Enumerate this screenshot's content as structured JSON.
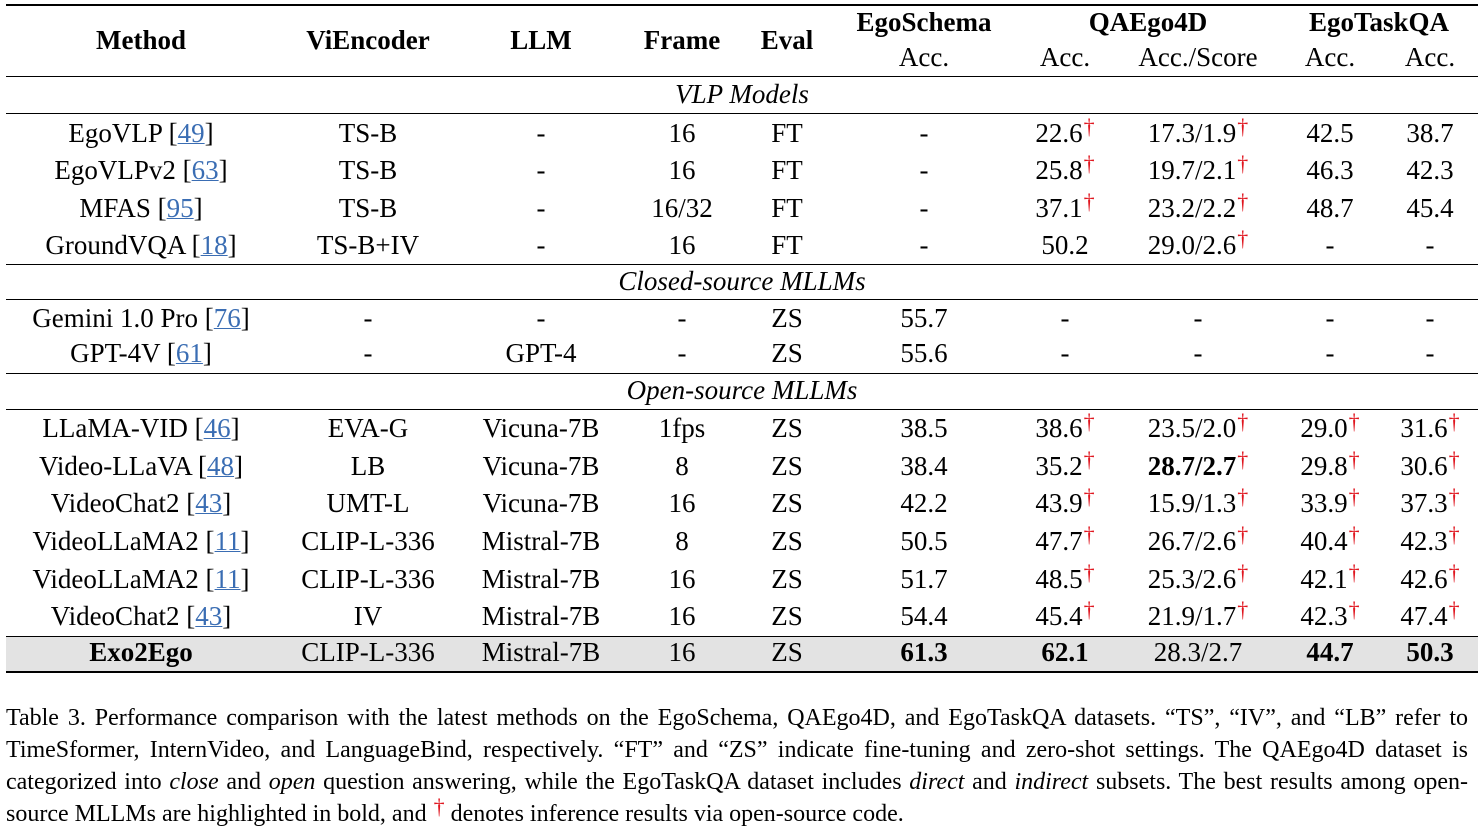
{
  "header": {
    "method": "Method",
    "viencoder": "ViEncoder",
    "llm": "LLM",
    "frame": "Frame",
    "eval": "Eval",
    "egoschema": "EgoSchema",
    "qaego4d": "QAEgo4D",
    "egotaskqa": "EgoTaskQA",
    "acc": "Acc.",
    "acc_score": "Acc./Score"
  },
  "sections": {
    "vlp": "VLP Models",
    "closed": "Closed-source MLLMs",
    "open": "Open-source MLLMs"
  },
  "rows": [
    {
      "name": "EgoVLP",
      "ref": "49",
      "enc": "TS-B",
      "llm": "-",
      "frame": "16",
      "eval": "FT",
      "es": "-",
      "qa_acc": "22.6",
      "qa_acc_dag": true,
      "qa_score": "17.3/1.9",
      "qa_score_dag": true,
      "et_d": "42.5",
      "et_d_dag": false,
      "et_i": "38.7",
      "et_i_dag": false
    },
    {
      "name": "EgoVLPv2",
      "ref": "63",
      "enc": "TS-B",
      "llm": "-",
      "frame": "16",
      "eval": "FT",
      "es": "-",
      "qa_acc": "25.8",
      "qa_acc_dag": true,
      "qa_score": "19.7/2.1",
      "qa_score_dag": true,
      "et_d": "46.3",
      "et_d_dag": false,
      "et_i": "42.3",
      "et_i_dag": false
    },
    {
      "name": "MFAS",
      "ref": "95",
      "enc": "TS-B",
      "llm": "-",
      "frame": "16/32",
      "eval": "FT",
      "es": "-",
      "qa_acc": "37.1",
      "qa_acc_dag": true,
      "qa_score": "23.2/2.2",
      "qa_score_dag": true,
      "et_d": "48.7",
      "et_d_dag": false,
      "et_i": "45.4",
      "et_i_dag": false
    },
    {
      "name": "GroundVQA",
      "ref": "18",
      "enc": "TS-B+IV",
      "llm": "-",
      "frame": "16",
      "eval": "FT",
      "es": "-",
      "qa_acc": "50.2",
      "qa_acc_dag": false,
      "qa_score": "29.0/2.6",
      "qa_score_dag": true,
      "et_d": "-",
      "et_d_dag": false,
      "et_i": "-",
      "et_i_dag": false
    },
    {
      "name": "Gemini 1.0 Pro",
      "ref": "76",
      "enc": "-",
      "llm": "-",
      "frame": "-",
      "eval": "ZS",
      "es": "55.7",
      "qa_acc": "-",
      "qa_acc_dag": false,
      "qa_score": "-",
      "qa_score_dag": false,
      "et_d": "-",
      "et_d_dag": false,
      "et_i": "-",
      "et_i_dag": false
    },
    {
      "name": "GPT-4V",
      "ref": "61",
      "enc": "-",
      "llm": "GPT-4",
      "frame": "-",
      "eval": "ZS",
      "es": "55.6",
      "qa_acc": "-",
      "qa_acc_dag": false,
      "qa_score": "-",
      "qa_score_dag": false,
      "et_d": "-",
      "et_d_dag": false,
      "et_i": "-",
      "et_i_dag": false
    },
    {
      "name": "LLaMA-VID",
      "ref": "46",
      "enc": "EVA-G",
      "llm": "Vicuna-7B",
      "frame": "1fps",
      "eval": "ZS",
      "es": "38.5",
      "qa_acc": "38.6",
      "qa_acc_dag": true,
      "qa_score": "23.5/2.0",
      "qa_score_dag": true,
      "et_d": "29.0",
      "et_d_dag": true,
      "et_i": "31.6",
      "et_i_dag": true
    },
    {
      "name": "Video-LLaVA",
      "ref": "48",
      "enc": "LB",
      "llm": "Vicuna-7B",
      "frame": "8",
      "eval": "ZS",
      "es": "38.4",
      "qa_acc": "35.2",
      "qa_acc_dag": true,
      "qa_score": "28.7/2.7",
      "qa_score_dag": true,
      "qa_score_bold": true,
      "et_d": "29.8",
      "et_d_dag": true,
      "et_i": "30.6",
      "et_i_dag": true
    },
    {
      "name": "VideoChat2",
      "ref": "43",
      "enc": "UMT-L",
      "llm": "Vicuna-7B",
      "frame": "16",
      "eval": "ZS",
      "es": "42.2",
      "qa_acc": "43.9",
      "qa_acc_dag": true,
      "qa_score": "15.9/1.3",
      "qa_score_dag": true,
      "et_d": "33.9",
      "et_d_dag": true,
      "et_i": "37.3",
      "et_i_dag": true
    },
    {
      "name": "VideoLLaMA2",
      "ref": "11",
      "enc": "CLIP-L-336",
      "llm": "Mistral-7B",
      "frame": "8",
      "eval": "ZS",
      "es": "50.5",
      "qa_acc": "47.7",
      "qa_acc_dag": true,
      "qa_score": "26.7/2.6",
      "qa_score_dag": true,
      "et_d": "40.4",
      "et_d_dag": true,
      "et_i": "42.3",
      "et_i_dag": true
    },
    {
      "name": "VideoLLaMA2",
      "ref": "11",
      "enc": "CLIP-L-336",
      "llm": "Mistral-7B",
      "frame": "16",
      "eval": "ZS",
      "es": "51.7",
      "qa_acc": "48.5",
      "qa_acc_dag": true,
      "qa_score": "25.3/2.6",
      "qa_score_dag": true,
      "et_d": "42.1",
      "et_d_dag": true,
      "et_i": "42.6",
      "et_i_dag": true
    },
    {
      "name": "VideoChat2",
      "ref": "43",
      "enc": "IV",
      "llm": "Mistral-7B",
      "frame": "16",
      "eval": "ZS",
      "es": "54.4",
      "qa_acc": "45.4",
      "qa_acc_dag": true,
      "qa_score": "21.9/1.7",
      "qa_score_dag": true,
      "et_d": "42.3",
      "et_d_dag": true,
      "et_i": "47.4",
      "et_i_dag": true
    },
    {
      "name": "Exo2Ego",
      "ref": "",
      "enc": "CLIP-L-336",
      "llm": "Mistral-7B",
      "frame": "16",
      "eval": "ZS",
      "es": "61.3",
      "qa_acc": "62.1",
      "qa_acc_dag": false,
      "qa_score": "28.3/2.7",
      "qa_score_dag": false,
      "et_d": "44.7",
      "et_d_dag": false,
      "et_i": "50.3",
      "et_i_dag": false,
      "highlight": true
    }
  ],
  "dagger": "†",
  "caption": {
    "p1": "Table 3.  Performance comparison with the latest methods on the EgoSchema, QAEgo4D, and EgoTaskQA datasets.  “TS”, “IV”, and “LB” refer to TimeSformer, InternVideo, and LanguageBind, respectively.  “FT” and “ZS” indicate fine-tuning and zero-shot settings. The QAEgo4D dataset is categorized into ",
    "close": "close",
    "and1": " and ",
    "open": "open",
    "p2": " question answering, while the EgoTaskQA dataset includes ",
    "direct": "direct",
    "and2": " and ",
    "indirect": "indirect",
    "p3": " subsets. The best results among open-source MLLMs are highlighted in bold, and ",
    "p4": " denotes inference results via open-source code."
  },
  "colors": {
    "dagger": "#e0161f",
    "reference_link": "#3a6db3",
    "highlight_row": "#e3e3e3"
  }
}
